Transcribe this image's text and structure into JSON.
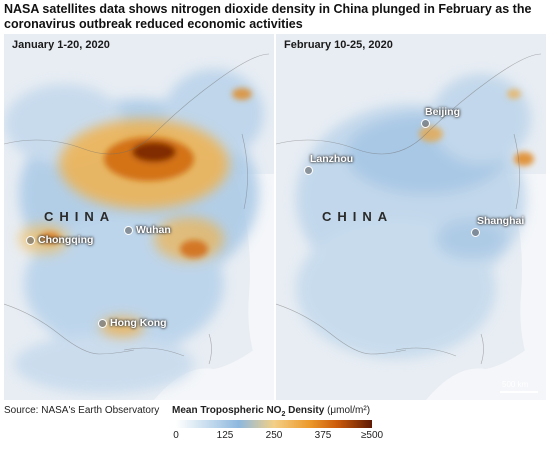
{
  "headline": "NASA satellites data shows nitrogen dioxide density in China plunged in February as the coronavirus outbreak reduced economic activities",
  "panels": {
    "left": {
      "period": "January 1-20, 2020",
      "country": "CHINA",
      "cities": [
        "Chongqing",
        "Wuhan",
        "Hong Kong"
      ]
    },
    "right": {
      "period": "February 10-25, 2020",
      "country": "CHINA",
      "cities": [
        "Beijing",
        "Lanzhou",
        "Shanghai"
      ],
      "scale_bar": "500 km"
    }
  },
  "source": "Source: NASA's Earth Observatory",
  "legend": {
    "title_prefix": "Mean Tropospheric NO",
    "title_sub": "2",
    "title_suffix": " Density ",
    "units": "(μmol/m²)",
    "ticks": [
      "0",
      "125",
      "250",
      "375",
      "≥500"
    ],
    "colors": [
      "#ffffff",
      "#8db8df",
      "#f3cf86",
      "#ec9a2c",
      "#cc5c0c",
      "#5e1a04"
    ]
  }
}
